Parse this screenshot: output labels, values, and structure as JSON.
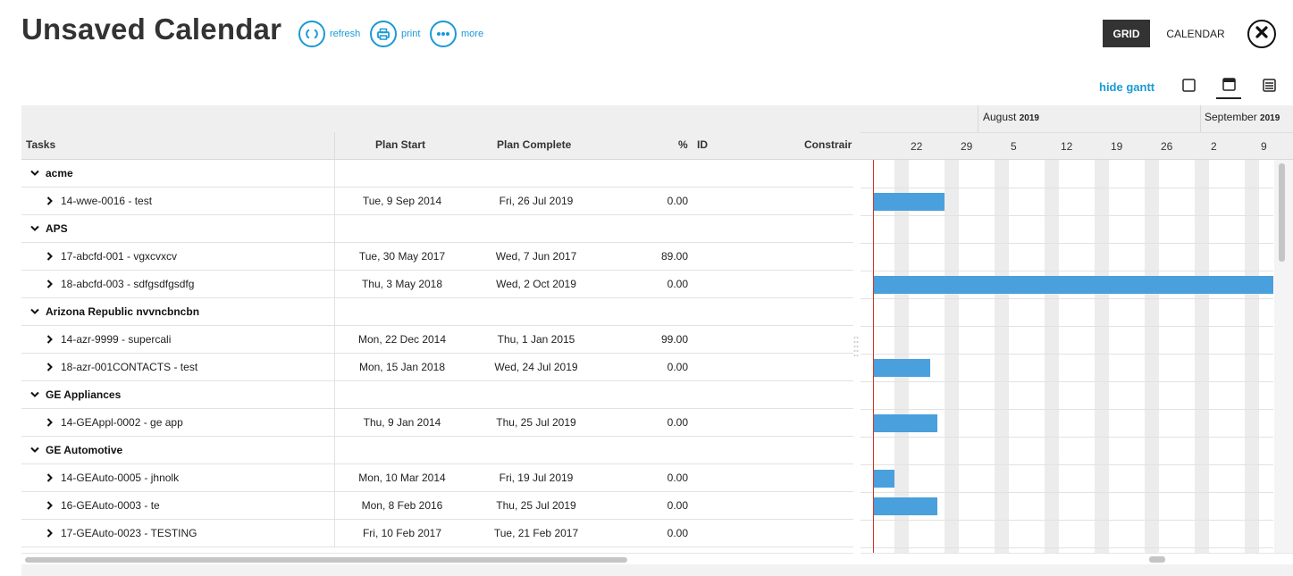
{
  "header": {
    "title": "Unsaved Calendar",
    "actions": [
      {
        "label": "refresh",
        "icon": "refresh-icon"
      },
      {
        "label": "print",
        "icon": "printer-icon"
      },
      {
        "label": "more",
        "icon": "more-icon"
      }
    ],
    "grid_label": "GRID",
    "calendar_label": "CALENDAR",
    "close_icon": "close-icon"
  },
  "toolbar": {
    "hide_gantt": "hide gantt",
    "view_icons": [
      "single-panel-icon",
      "split-panel-icon",
      "list-panel-icon"
    ]
  },
  "colors": {
    "accent": "#1a9ad6",
    "bar": "#4a9fdd",
    "today_line": "#d0342c",
    "active_button": "#333333"
  },
  "grid": {
    "columns": {
      "tasks": "Tasks",
      "plan_start": "Plan Start",
      "plan_complete": "Plan Complete",
      "percent": "%",
      "id": "ID",
      "constraint": "Constrair"
    },
    "rows": [
      {
        "type": "group",
        "name": "acme"
      },
      {
        "type": "task",
        "name": "14-wwe-0016 - test",
        "start": "Tue, 9 Sep 2014",
        "complete": "Fri, 26 Jul 2019",
        "pct": "0.00"
      },
      {
        "type": "group",
        "name": "APS"
      },
      {
        "type": "task",
        "name": "17-abcfd-001 - vgxcvxcv",
        "start": "Tue, 30 May 2017",
        "complete": "Wed, 7 Jun 2017",
        "pct": "89.00"
      },
      {
        "type": "task",
        "name": "18-abcfd-003 - sdfgsdfgsdfg",
        "start": "Thu, 3 May 2018",
        "complete": "Wed, 2 Oct 2019",
        "pct": "0.00"
      },
      {
        "type": "group",
        "name": "Arizona Republic nvvncbncbn"
      },
      {
        "type": "task",
        "name": "14-azr-9999 - supercali",
        "start": "Mon, 22 Dec 2014",
        "complete": "Thu, 1 Jan 2015",
        "pct": "99.00"
      },
      {
        "type": "task",
        "name": "18-azr-001CONTACTS - test",
        "start": "Mon, 15 Jan 2018",
        "complete": "Wed, 24 Jul 2019",
        "pct": "0.00"
      },
      {
        "type": "group",
        "name": "GE Appliances"
      },
      {
        "type": "task",
        "name": "14-GEAppl-0002 - ge app",
        "start": "Thu, 9 Jan 2014",
        "complete": "Thu, 25 Jul 2019",
        "pct": "0.00"
      },
      {
        "type": "group",
        "name": "GE Automotive"
      },
      {
        "type": "task",
        "name": "14-GEAuto-0005 - jhnolk",
        "start": "Mon, 10 Mar 2014",
        "complete": "Fri, 19 Jul 2019",
        "pct": "0.00"
      },
      {
        "type": "task",
        "name": "16-GEAuto-0003 - te",
        "start": "Mon, 8 Feb 2016",
        "complete": "Thu, 25 Jul 2019",
        "pct": "0.00"
      },
      {
        "type": "task",
        "name": "17-GEAuto-0023 - TESTING",
        "start": "Fri, 10 Feb 2017",
        "complete": "Tue, 21 Feb 2017",
        "pct": "0.00"
      }
    ]
  },
  "gantt": {
    "months": [
      {
        "name": "August",
        "year": "2019"
      },
      {
        "name": "September",
        "year": "2019"
      }
    ],
    "weeks": [
      "22",
      "29",
      "5",
      "12",
      "19",
      "26",
      "2",
      "9"
    ]
  }
}
